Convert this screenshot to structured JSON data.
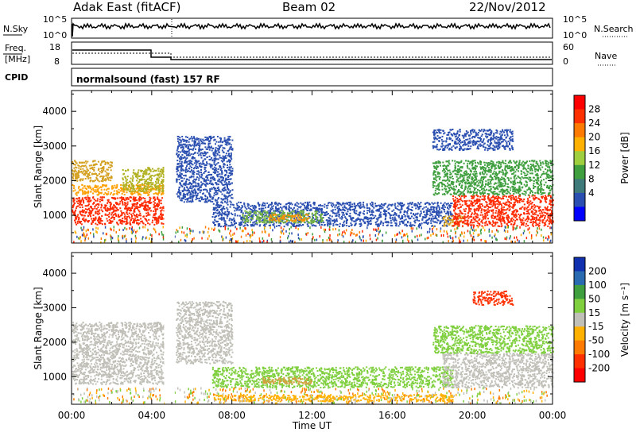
{
  "header": {
    "radar": "Adak East (fitACF)",
    "beam": "Beam 02",
    "date": "22/Nov/2012"
  },
  "panels": {
    "nsky_label": "N.Sky",
    "nsky_ticks": [
      "10^5",
      "10^0"
    ],
    "nsearch_label": "N.Search",
    "nsearch_ticks": [
      "10^5",
      "10^0"
    ],
    "freq_label": "Freq.",
    "freq_unit": "[MHz]",
    "freq_ticks": [
      "18",
      "8"
    ],
    "nave_label": "Nave",
    "nave_ticks": [
      "60",
      "0"
    ],
    "cpid_label": "CPID",
    "cpid_text": "normalsound (fast) 157 RF"
  },
  "chart_data": [
    {
      "type": "heatmap",
      "title": "",
      "ylabel": "Slant Range [km]",
      "xlabel": "",
      "x_ticks": [
        "00:00",
        "04:00",
        "08:00",
        "12:00",
        "16:00",
        "20:00",
        "00:00"
      ],
      "y_ticks": [
        "1000",
        "2000",
        "3000",
        "4000"
      ],
      "ylim": [
        200,
        4600
      ],
      "colorbar_label": "Power [dB]",
      "colorbar_ticks": [
        "28",
        "24",
        "20",
        "16",
        "12",
        "8",
        "4"
      ],
      "colorbar_colors": [
        "#ff0000",
        "#ff3000",
        "#ff7a00",
        "#ffb000",
        "#9fcf3f",
        "#3f9f3f",
        "#3f7a7a",
        "#2a4fb0",
        "#0000ff"
      ],
      "regions": [
        {
          "name": "a",
          "x": [
            0.0,
            4.6
          ],
          "y": [
            750,
            1550
          ],
          "color": "#ff2a00"
        },
        {
          "name": "b",
          "x": [
            0.0,
            4.6
          ],
          "y": [
            1600,
            1900
          ],
          "color": "#ffa000"
        },
        {
          "name": "c",
          "x": [
            0.0,
            2.0
          ],
          "y": [
            2000,
            2600
          ],
          "color": "#d4a020"
        },
        {
          "name": "d",
          "x": [
            2.5,
            4.6
          ],
          "y": [
            1700,
            2400
          ],
          "color": "#b0b020"
        },
        {
          "name": "e",
          "x": [
            5.2,
            8.0
          ],
          "y": [
            1400,
            3300
          ],
          "color": "#2a4fb0"
        },
        {
          "name": "f",
          "x": [
            7.0,
            19.0
          ],
          "y": [
            700,
            1400
          ],
          "color": "#2a4fb0"
        },
        {
          "name": "g",
          "x": [
            8.5,
            12.5
          ],
          "y": [
            800,
            1150
          ],
          "color": "#6fb040"
        },
        {
          "name": "h",
          "x": [
            9.8,
            11.8
          ],
          "y": [
            850,
            1050
          ],
          "color": "#ff9000"
        },
        {
          "name": "i",
          "x": [
            18.5,
            19.5
          ],
          "y": [
            700,
            1000
          ],
          "color": "#d4a020"
        },
        {
          "name": "j",
          "x": [
            19.0,
            24.0
          ],
          "y": [
            700,
            1600
          ],
          "color": "#ff2a00"
        },
        {
          "name": "k",
          "x": [
            18.0,
            24.0
          ],
          "y": [
            1600,
            2600
          ],
          "color": "#3f9f3f"
        },
        {
          "name": "l",
          "x": [
            18.0,
            22.0
          ],
          "y": [
            2900,
            3500
          ],
          "color": "#2a4fb0"
        }
      ]
    },
    {
      "type": "heatmap",
      "title": "",
      "ylabel": "Slant Range [km]",
      "xlabel": "Time UT",
      "x_ticks": [
        "00:00",
        "04:00",
        "08:00",
        "12:00",
        "16:00",
        "20:00",
        "00:00"
      ],
      "y_ticks": [
        "1000",
        "2000",
        "3000",
        "4000"
      ],
      "ylim": [
        200,
        4600
      ],
      "colorbar_label": "Velocity [m s⁻¹]",
      "colorbar_ticks": [
        "200",
        "100",
        "50",
        "15",
        "-15",
        "-50",
        "-100",
        "-200"
      ],
      "colorbar_colors": [
        "#1030b0",
        "#2a6ab0",
        "#3f9f3f",
        "#7fcf3f",
        "#c0c0b8",
        "#ffb000",
        "#ff7a00",
        "#ff3000",
        "#ff0000"
      ],
      "regions": [
        {
          "name": "a",
          "x": [
            0.0,
            4.6
          ],
          "y": [
            800,
            1700
          ],
          "color": "#c0c0b8"
        },
        {
          "name": "b",
          "x": [
            0.0,
            4.6
          ],
          "y": [
            1700,
            2600
          ],
          "color": "#c0c0b8"
        },
        {
          "name": "c",
          "x": [
            5.2,
            8.0
          ],
          "y": [
            1400,
            3200
          ],
          "color": "#c0c0b8"
        },
        {
          "name": "d",
          "x": [
            7.0,
            19.0
          ],
          "y": [
            700,
            1300
          ],
          "color": "#7fcf3f"
        },
        {
          "name": "e",
          "x": [
            9.5,
            12.0
          ],
          "y": [
            800,
            1000
          ],
          "color": "#d4a040"
        },
        {
          "name": "f",
          "x": [
            18.5,
            24.0
          ],
          "y": [
            700,
            1700
          ],
          "color": "#c0c0b8"
        },
        {
          "name": "g",
          "x": [
            18.0,
            24.0
          ],
          "y": [
            1700,
            2500
          ],
          "color": "#7fcf3f"
        },
        {
          "name": "h",
          "x": [
            20.0,
            22.0
          ],
          "y": [
            3100,
            3500
          ],
          "color": "#ff3000"
        },
        {
          "name": "i",
          "x": [
            7.0,
            19.0
          ],
          "y": [
            300,
            500
          ],
          "color": "#ffb000"
        }
      ]
    }
  ]
}
